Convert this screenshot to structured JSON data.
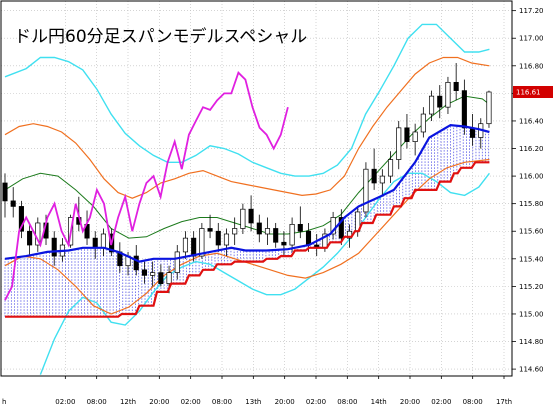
{
  "chart_data": {
    "type": "line",
    "title": "ドル円60分足スパンモデルスペシャル",
    "y_ticks": [
      "117.20",
      "117.00",
      "116.80",
      "116.60",
      "116.40",
      "116.20",
      "116.00",
      "115.80",
      "115.60",
      "115.40",
      "115.20",
      "115.00",
      "114.80",
      "114.60"
    ],
    "ylim": [
      114.55,
      117.27
    ],
    "x_ticks": [
      "h",
      "02:00",
      "08:00",
      "12th",
      "20:00",
      "02:00",
      "08:00",
      "13th",
      "20:00",
      "02:00",
      "08:00",
      "14th",
      "20:00",
      "02:00",
      "08:00",
      "17th"
    ],
    "last_price_label": "116.61",
    "grid": true,
    "colors": {
      "candle_up": "#ffffff",
      "candle_down": "#000000",
      "red_line": "#e01010",
      "blue_line": "#0a14e0",
      "green_line": "#1c7a1c",
      "magenta_line": "#e020e0",
      "cyan_band": "#40e0f0",
      "orange_band": "#f07020",
      "cloud_blue": "#5a5ae8",
      "cloud_red": "#e86060",
      "last_price_bg": "#d20000"
    },
    "series": [
      {
        "role": "upper-outer-band-cyan",
        "x": [
          0,
          6,
          10,
          14,
          18,
          22,
          26,
          30,
          34,
          38,
          42,
          46,
          50,
          54,
          58,
          62,
          66,
          70,
          74,
          78,
          82,
          86,
          90,
          94,
          98,
          102,
          106,
          110,
          114,
          118,
          122,
          126,
          130,
          134,
          137
        ],
        "values": [
          116.72,
          116.78,
          116.86,
          116.86,
          116.83,
          116.77,
          116.63,
          116.45,
          116.31,
          116.22,
          116.15,
          116.1,
          116.1,
          116.15,
          116.22,
          116.2,
          116.16,
          116.1,
          116.06,
          116.02,
          116,
          116,
          116.02,
          116.08,
          116.2,
          116.45,
          116.62,
          116.8,
          117,
          117.1,
          117.1,
          117.0,
          116.9,
          116.9,
          116.92
        ]
      },
      {
        "role": "upper-inner-band-orange",
        "x": [
          0,
          4,
          8,
          12,
          16,
          20,
          24,
          28,
          32,
          36,
          40,
          44,
          48,
          52,
          56,
          60,
          64,
          68,
          72,
          76,
          80,
          84,
          88,
          92,
          96,
          100,
          104,
          108,
          112,
          116,
          120,
          124,
          128,
          132,
          137
        ],
        "values": [
          116.3,
          116.36,
          116.38,
          116.36,
          116.32,
          116.24,
          116.12,
          115.98,
          115.88,
          115.84,
          115.88,
          115.95,
          115.98,
          116.02,
          116.04,
          116.0,
          115.96,
          115.94,
          115.92,
          115.9,
          115.88,
          115.86,
          115.87,
          115.9,
          116.0,
          116.2,
          116.36,
          116.5,
          116.62,
          116.74,
          116.82,
          116.86,
          116.86,
          116.82,
          116.8
        ]
      },
      {
        "role": "middle-green",
        "x": [
          0,
          5,
          10,
          15,
          20,
          25,
          30,
          35,
          40,
          45,
          50,
          55,
          60,
          65,
          70,
          75,
          80,
          85,
          90,
          95,
          100,
          105,
          110,
          115,
          120,
          125,
          130,
          135,
          137
        ],
        "values": [
          115.9,
          115.98,
          116.02,
          116.0,
          115.9,
          115.78,
          115.62,
          115.55,
          115.56,
          115.62,
          115.67,
          115.7,
          115.7,
          115.66,
          115.62,
          115.58,
          115.58,
          115.6,
          115.64,
          115.72,
          115.88,
          116.02,
          116.16,
          116.3,
          116.42,
          116.52,
          116.58,
          116.56,
          116.52
        ]
      },
      {
        "role": "lower-inner-band-orange",
        "x": [
          0,
          5,
          10,
          15,
          20,
          25,
          30,
          35,
          40,
          45,
          50,
          55,
          60,
          65,
          70,
          75,
          80,
          85,
          90,
          95,
          100,
          105,
          110,
          115,
          120,
          125,
          130,
          137
        ],
        "values": [
          115.35,
          115.42,
          115.4,
          115.32,
          115.2,
          115.06,
          115.0,
          115.05,
          115.15,
          115.28,
          115.36,
          115.42,
          115.44,
          115.4,
          115.36,
          115.32,
          115.28,
          115.26,
          115.3,
          115.36,
          115.44,
          115.58,
          115.72,
          115.86,
          115.98,
          116.06,
          116.1,
          116.12
        ]
      },
      {
        "role": "lower-outer-band-cyan",
        "x": [
          10,
          14,
          18,
          22,
          26,
          30,
          34,
          38,
          42,
          46,
          50,
          54,
          58,
          62,
          66,
          70,
          74,
          78,
          82,
          86,
          90,
          94,
          98,
          102,
          106,
          110,
          114,
          118,
          122,
          126,
          130,
          134,
          137
        ],
        "values": [
          114.56,
          114.82,
          115.02,
          115.12,
          115.08,
          114.94,
          114.92,
          115.02,
          115.16,
          115.28,
          115.34,
          115.38,
          115.36,
          115.3,
          115.24,
          115.18,
          115.14,
          115.14,
          115.18,
          115.26,
          115.34,
          115.44,
          115.56,
          115.7,
          115.84,
          115.96,
          116.02,
          116.02,
          115.96,
          115.88,
          115.86,
          115.92,
          116.02
        ]
      },
      {
        "role": "red-step",
        "x": [
          0,
          32,
          33,
          37,
          38,
          42,
          43,
          46,
          47,
          51,
          52,
          55,
          56,
          59,
          60,
          64,
          65,
          70,
          71,
          73,
          74,
          77,
          78,
          81,
          82,
          85,
          86,
          91,
          92,
          95,
          96,
          98,
          99,
          100,
          101,
          104,
          105,
          109,
          110,
          112,
          113,
          115,
          116,
          122,
          123,
          126,
          127,
          128,
          129,
          132,
          133,
          137
        ],
        "values": [
          114.98,
          114.98,
          115.0,
          115.0,
          115.06,
          115.06,
          115.16,
          115.16,
          115.22,
          115.22,
          115.28,
          115.28,
          115.32,
          115.32,
          115.36,
          115.36,
          115.38,
          115.38,
          115.38,
          115.38,
          115.4,
          115.4,
          115.42,
          115.42,
          115.46,
          115.46,
          115.48,
          115.48,
          115.52,
          115.52,
          115.56,
          115.56,
          115.6,
          115.6,
          115.66,
          115.66,
          115.72,
          115.72,
          115.78,
          115.78,
          115.84,
          115.84,
          115.9,
          115.9,
          115.96,
          115.96,
          116.02,
          116.02,
          116.06,
          116.06,
          116.1,
          116.1
        ]
      },
      {
        "role": "blue-line",
        "x": [
          0,
          6,
          12,
          18,
          22,
          28,
          32,
          38,
          42,
          48,
          52,
          58,
          62,
          64,
          68,
          74,
          80,
          86,
          92,
          96,
          100,
          106,
          110,
          116,
          120,
          126,
          130,
          134,
          137
        ],
        "values": [
          115.4,
          115.42,
          115.45,
          115.46,
          115.48,
          115.48,
          115.45,
          115.38,
          115.4,
          115.4,
          115.42,
          115.45,
          115.47,
          115.48,
          115.46,
          115.46,
          115.47,
          115.5,
          115.58,
          115.7,
          115.78,
          115.85,
          115.9,
          116.1,
          116.28,
          116.37,
          116.36,
          116.34,
          116.32
        ]
      },
      {
        "role": "magenta-lagging",
        "x": [
          0,
          2,
          4,
          6,
          8,
          10,
          12,
          14,
          16,
          18,
          20,
          22,
          24,
          26,
          28,
          30,
          32,
          34,
          36,
          38,
          40,
          42,
          44,
          46,
          48,
          50,
          52,
          54,
          56,
          58,
          60,
          62,
          64,
          66,
          68,
          70,
          72,
          74,
          76,
          78,
          80
        ],
        "values": [
          115.1,
          115.2,
          115.6,
          115.7,
          115.6,
          115.5,
          115.7,
          115.8,
          115.6,
          115.5,
          115.8,
          115.6,
          115.7,
          115.9,
          115.8,
          115.5,
          115.7,
          115.85,
          115.6,
          115.8,
          115.95,
          116.0,
          115.85,
          116.1,
          116.25,
          116.05,
          116.3,
          116.4,
          116.5,
          116.48,
          116.55,
          116.6,
          116.6,
          116.75,
          116.7,
          116.5,
          116.35,
          116.3,
          116.2,
          116.3,
          116.5
        ]
      }
    ],
    "candles": [
      [
        0,
        115.95,
        116.02,
        115.7,
        115.82
      ],
      [
        1,
        115.82,
        115.92,
        115.7,
        115.78
      ],
      [
        2,
        115.78,
        115.82,
        115.55,
        115.6
      ],
      [
        3,
        115.6,
        115.65,
        115.42,
        115.5
      ],
      [
        4,
        115.5,
        115.7,
        115.45,
        115.66
      ],
      [
        5,
        115.66,
        115.72,
        115.5,
        115.55
      ],
      [
        6,
        115.55,
        115.6,
        115.35,
        115.42
      ],
      [
        7,
        115.42,
        115.55,
        115.38,
        115.5
      ],
      [
        8,
        115.5,
        115.72,
        115.48,
        115.7
      ],
      [
        9,
        115.7,
        115.85,
        115.6,
        115.65
      ],
      [
        10,
        115.65,
        115.75,
        115.5,
        115.55
      ],
      [
        11,
        115.55,
        115.6,
        115.4,
        115.48
      ],
      [
        12,
        115.48,
        115.62,
        115.42,
        115.58
      ],
      [
        13,
        115.58,
        115.62,
        115.42,
        115.45
      ],
      [
        14,
        115.45,
        115.52,
        115.3,
        115.35
      ],
      [
        15,
        115.35,
        115.45,
        115.28,
        115.42
      ],
      [
        16,
        115.42,
        115.5,
        115.28,
        115.32
      ],
      [
        17,
        115.32,
        115.38,
        115.22,
        115.28
      ],
      [
        18,
        115.28,
        115.38,
        115.2,
        115.3
      ],
      [
        19,
        115.3,
        115.36,
        115.2,
        115.22
      ],
      [
        20,
        115.22,
        115.35,
        115.15,
        115.3
      ],
      [
        21,
        115.3,
        115.5,
        115.25,
        115.45
      ],
      [
        22,
        115.45,
        115.6,
        115.4,
        115.55
      ],
      [
        23,
        115.55,
        115.6,
        115.38,
        115.42
      ],
      [
        24,
        115.42,
        115.66,
        115.4,
        115.62
      ],
      [
        25,
        115.62,
        115.72,
        115.55,
        115.6
      ],
      [
        26,
        115.6,
        115.66,
        115.45,
        115.5
      ],
      [
        27,
        115.5,
        115.62,
        115.42,
        115.58
      ],
      [
        28,
        115.58,
        115.7,
        115.5,
        115.62
      ],
      [
        29,
        115.62,
        115.8,
        115.58,
        115.76
      ],
      [
        30,
        115.76,
        115.86,
        115.6,
        115.66
      ],
      [
        31,
        115.66,
        115.72,
        115.52,
        115.58
      ],
      [
        32,
        115.58,
        115.7,
        115.5,
        115.62
      ],
      [
        33,
        115.62,
        115.66,
        115.48,
        115.52
      ],
      [
        34,
        115.52,
        115.6,
        115.42,
        115.5
      ],
      [
        35,
        115.5,
        115.7,
        115.45,
        115.65
      ],
      [
        36,
        115.65,
        115.78,
        115.55,
        115.6
      ],
      [
        37,
        115.6,
        115.66,
        115.45,
        115.5
      ],
      [
        38,
        115.5,
        115.58,
        115.42,
        115.48
      ],
      [
        39,
        115.48,
        115.62,
        115.45,
        115.58
      ],
      [
        40,
        115.58,
        115.74,
        115.54,
        115.7
      ],
      [
        41,
        115.7,
        115.76,
        115.5,
        115.55
      ],
      [
        42,
        115.55,
        115.65,
        115.48,
        115.6
      ],
      [
        43,
        115.6,
        115.78,
        115.56,
        115.74
      ],
      [
        44,
        115.74,
        116.1,
        115.7,
        116.05
      ],
      [
        45,
        116.05,
        116.2,
        115.9,
        115.95
      ],
      [
        46,
        115.95,
        116.05,
        115.85,
        116.0
      ],
      [
        47,
        116.0,
        116.18,
        115.95,
        116.12
      ],
      [
        48,
        116.12,
        116.4,
        116.05,
        116.35
      ],
      [
        49,
        116.35,
        116.45,
        116.2,
        116.25
      ],
      [
        50,
        116.25,
        116.38,
        116.15,
        116.32
      ],
      [
        51,
        116.32,
        116.5,
        116.28,
        116.45
      ],
      [
        52,
        116.45,
        116.62,
        116.4,
        116.58
      ],
      [
        53,
        116.58,
        116.66,
        116.42,
        116.5
      ],
      [
        54,
        116.5,
        116.72,
        116.45,
        116.68
      ],
      [
        55,
        116.68,
        116.82,
        116.55,
        116.62
      ],
      [
        56,
        116.62,
        116.7,
        116.3,
        116.35
      ],
      [
        57,
        116.35,
        116.45,
        116.22,
        116.28
      ],
      [
        58,
        116.28,
        116.42,
        116.2,
        116.38
      ],
      [
        59,
        116.38,
        116.62,
        116.35,
        116.61
      ]
    ]
  }
}
